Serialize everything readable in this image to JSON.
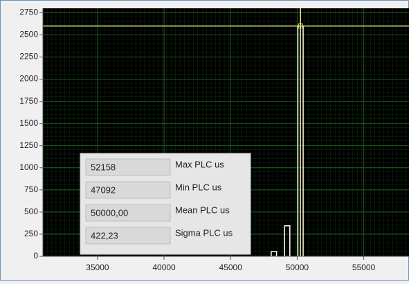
{
  "chart_data": {
    "type": "histogram",
    "bins": [
      48000,
      48500,
      49000,
      49500,
      50000,
      50500
    ],
    "counts": [
      55,
      0,
      345,
      0,
      2600
    ],
    "color": "#ffffff",
    "xlim": [
      30900,
      58400
    ],
    "xticks": [
      35000,
      40000,
      45000,
      50000,
      55000
    ],
    "ylim": [
      0,
      2800
    ],
    "yticks": [
      0,
      250,
      500,
      750,
      1000,
      1250,
      1500,
      1750,
      2000,
      2250,
      2500,
      2750
    ],
    "grid": true,
    "grid_color": "#1f5a1f",
    "background": "#000000",
    "cursor": {
      "x": 50250,
      "y": 2600,
      "color": "#e8e87a"
    }
  },
  "indicators": [
    {
      "value": "52158",
      "label": "Max PLC us"
    },
    {
      "value": "47092",
      "label": "Min PLC us"
    },
    {
      "value": "50000,00",
      "label": "Mean PLC us"
    },
    {
      "value": "422,23",
      "label": "Sigma PLC us"
    }
  ]
}
